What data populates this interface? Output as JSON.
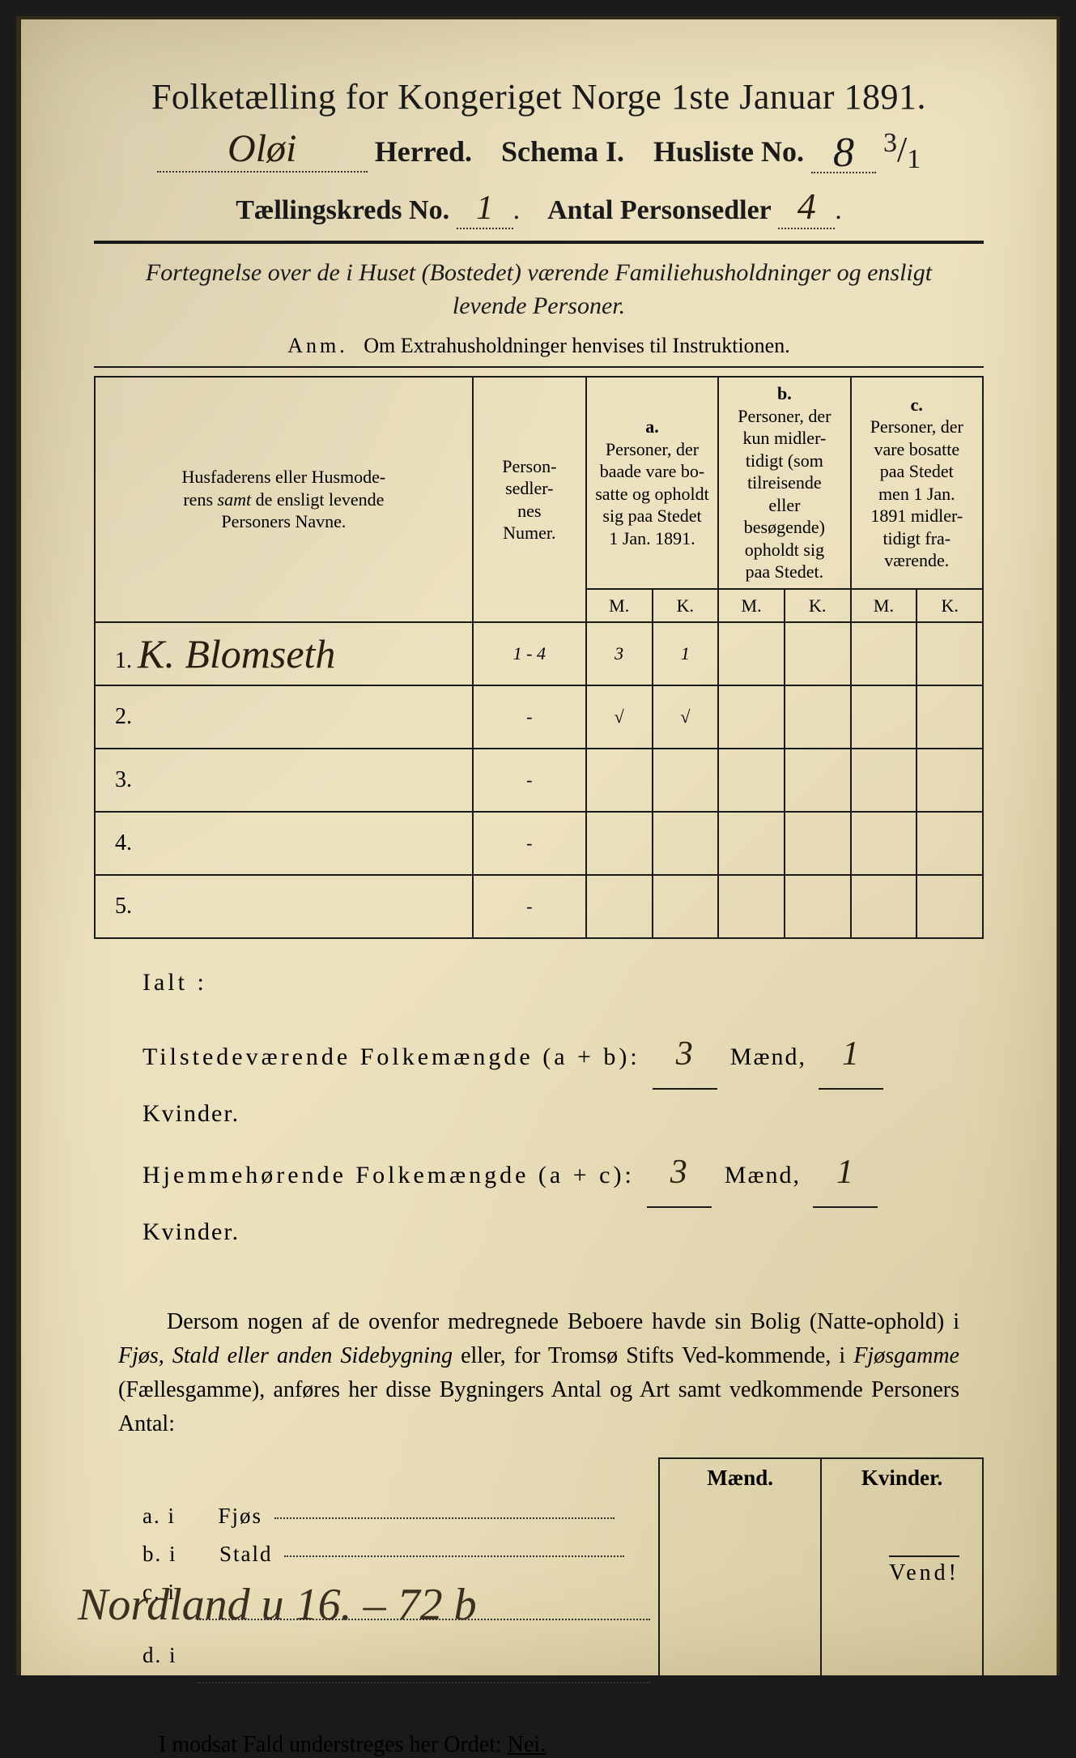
{
  "header": {
    "title": "Folketælling for Kongeriget Norge 1ste Januar 1891.",
    "herred_hand": "Oløi",
    "herred_label": "Herred.",
    "schema_label": "Schema I.",
    "husliste_label": "Husliste No.",
    "husliste_no": "8",
    "husliste_frac_top": "3",
    "husliste_frac_bot": "1",
    "kreds_label": "Tællingskreds No.",
    "kreds_no": "1",
    "antal_label": "Antal Personsedler",
    "antal_no": "4"
  },
  "description": {
    "line1": "Fortegnelse over de i Huset (Bostedet) værende Familiehusholdninger og ensligt",
    "line2": "levende Personer.",
    "anm_lead": "Anm.",
    "anm_text": "Om Extrahusholdninger henvises til Instruktionen."
  },
  "table": {
    "col1_header": "Husfaderens eller Husmoderens samt de ensligt levende Personers Navne.",
    "col1_italic": "samt",
    "col2_header": "Person-\nsedler-\nnes\nNumer.",
    "col_a_label": "a.",
    "col_a_header": "Personer, der baade vare bo-satte og opholdt sig paa Stedet 1 Jan. 1891.",
    "col_b_label": "b.",
    "col_b_header": "Personer, der kun midler-tidigt (som tilreisende eller besøgende) opholdt sig paa Stedet.",
    "col_c_label": "c.",
    "col_c_header": "Personer, der vare bosatte paa Stedet men 1 Jan. 1891 midler-tidigt fra-værende.",
    "m_label": "M.",
    "k_label": "K.",
    "rows": [
      {
        "n": "1.",
        "name": "K. Blomseth",
        "numer": "1 - 4",
        "a_m": "3",
        "a_k": "1",
        "b_m": "",
        "b_k": "",
        "c_m": "",
        "c_k": ""
      },
      {
        "n": "2.",
        "name": "",
        "numer": "-",
        "a_m": "√",
        "a_k": "√",
        "b_m": "",
        "b_k": "",
        "c_m": "",
        "c_k": ""
      },
      {
        "n": "3.",
        "name": "",
        "numer": "-",
        "a_m": "",
        "a_k": "",
        "b_m": "",
        "b_k": "",
        "c_m": "",
        "c_k": ""
      },
      {
        "n": "4.",
        "name": "",
        "numer": "-",
        "a_m": "",
        "a_k": "",
        "b_m": "",
        "b_k": "",
        "c_m": "",
        "c_k": ""
      },
      {
        "n": "5.",
        "name": "",
        "numer": "-",
        "a_m": "",
        "a_k": "",
        "b_m": "",
        "b_k": "",
        "c_m": "",
        "c_k": ""
      }
    ]
  },
  "totals": {
    "ialt": "Ialt :",
    "line1_label": "Tilstedeværende Folkemængde (a + b):",
    "line1_m": "3",
    "line1_k": "1",
    "line2_label": "Hjemmehørende Folkemængde (a + c):",
    "line2_m": "3",
    "line2_k": "1",
    "maend": "Mænd,",
    "kvinder": "Kvinder."
  },
  "body": {
    "text": "Dersom nogen af de ovenfor medregnede Beboere havde sin Bolig (Natte-ophold) i Fjøs, Stald eller anden Sidebygning eller, for Tromsø Stifts Ved-kommende, i Fjøsgamme (Fællesgamme), anføres her disse Bygningers Antal og Art samt vedkommende Personers Antal:"
  },
  "side": {
    "maend": "Mænd.",
    "kvinder": "Kvinder.",
    "rows": [
      {
        "lead": "a.   i",
        "label": "Fjøs"
      },
      {
        "lead": "b.   i",
        "label": "Stald"
      },
      {
        "lead": "c.   i",
        "label": ""
      },
      {
        "lead": "d.   i",
        "label": ""
      }
    ]
  },
  "footer": {
    "modsat": "I modsat Fald understreges her Ordet:",
    "nei": "Nei.",
    "vend": "Vend!",
    "bottom_script": "Nordland u 16. – 72 b"
  },
  "colors": {
    "paper": "#e8dcb8",
    "ink": "#1a1a1a",
    "hand_ink": "#2a1f10"
  }
}
